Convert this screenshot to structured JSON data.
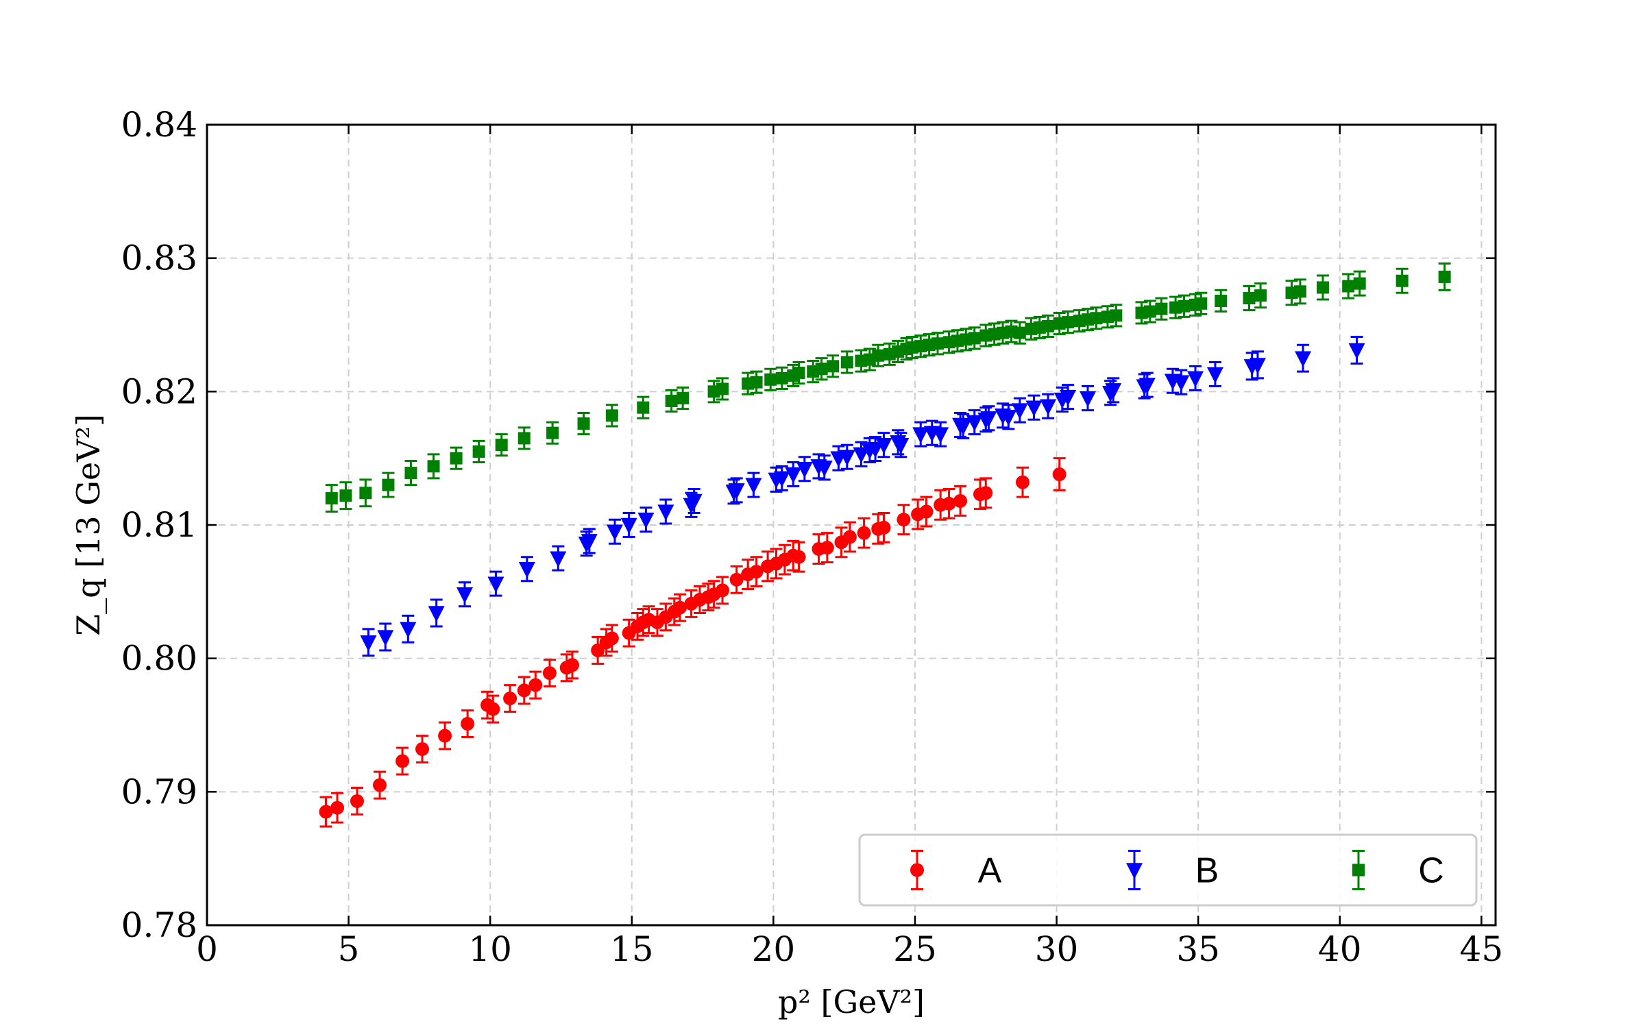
{
  "chart_data": {
    "type": "scatter",
    "title": "",
    "xlabel": "p² [GeV²]",
    "ylabel": "Z_q  [13 GeV²]",
    "xlim": [
      0,
      45.5
    ],
    "ylim": [
      0.78,
      0.84
    ],
    "xticks": [
      0,
      5,
      10,
      15,
      20,
      25,
      30,
      35,
      40,
      45
    ],
    "xtick_labels": [
      "0",
      "5",
      "10",
      "15",
      "20",
      "25",
      "30",
      "35",
      "40",
      "45"
    ],
    "yticks": [
      0.78,
      0.79,
      0.8,
      0.81,
      0.82,
      0.83,
      0.84
    ],
    "ytick_labels": [
      "0.78",
      "0.79",
      "0.80",
      "0.81",
      "0.82",
      "0.83",
      "0.84"
    ],
    "grid": true,
    "legend": {
      "placement": "lower-right",
      "columns": 3
    },
    "series": [
      {
        "name": "A",
        "color": "#ff0000",
        "marker": "circle",
        "x": [
          4.2,
          4.6,
          5.3,
          6.1,
          6.9,
          7.6,
          8.4,
          9.2,
          9.9,
          10.1,
          10.7,
          11.2,
          11.6,
          12.1,
          12.7,
          12.9,
          13.8,
          14.1,
          14.3,
          14.9,
          15.2,
          15.4,
          15.6,
          15.9,
          16.2,
          16.5,
          16.7,
          17.1,
          17.4,
          17.7,
          17.9,
          18.2,
          18.7,
          19.1,
          19.4,
          19.8,
          20.1,
          20.4,
          20.7,
          20.9,
          21.6,
          21.9,
          22.4,
          22.7,
          23.2,
          23.7,
          23.9,
          24.6,
          25.1,
          25.4,
          25.9,
          26.2,
          26.6,
          27.3,
          27.5,
          28.8,
          30.1
        ],
        "y": [
          0.7885,
          0.7888,
          0.7893,
          0.7905,
          0.7923,
          0.7932,
          0.7942,
          0.7951,
          0.7965,
          0.7962,
          0.797,
          0.7976,
          0.798,
          0.7989,
          0.7993,
          0.7995,
          0.8006,
          0.8012,
          0.8015,
          0.8019,
          0.8024,
          0.8027,
          0.8029,
          0.8027,
          0.8031,
          0.8035,
          0.8038,
          0.8041,
          0.8044,
          0.8046,
          0.8048,
          0.8051,
          0.8059,
          0.8063,
          0.8065,
          0.8069,
          0.8071,
          0.8074,
          0.8077,
          0.8076,
          0.8082,
          0.8083,
          0.8087,
          0.8091,
          0.8094,
          0.8097,
          0.8098,
          0.8104,
          0.8108,
          0.811,
          0.8115,
          0.8116,
          0.8118,
          0.8123,
          0.8124,
          0.8132,
          0.8138
        ],
        "err": [
          0.0011,
          0.0011,
          0.001,
          0.001,
          0.001,
          0.001,
          0.001,
          0.001,
          0.001,
          0.001,
          0.001,
          0.001,
          0.001,
          0.001,
          0.001,
          0.001,
          0.001,
          0.001,
          0.001,
          0.001,
          0.001,
          0.001,
          0.001,
          0.001,
          0.001,
          0.001,
          0.001,
          0.001,
          0.001,
          0.001,
          0.001,
          0.001,
          0.001,
          0.0011,
          0.0011,
          0.0011,
          0.0011,
          0.0011,
          0.0011,
          0.0011,
          0.0011,
          0.0011,
          0.0011,
          0.0011,
          0.0011,
          0.0011,
          0.0011,
          0.0011,
          0.0011,
          0.0011,
          0.0011,
          0.0011,
          0.0011,
          0.0011,
          0.0011,
          0.0011,
          0.0012
        ]
      },
      {
        "name": "B",
        "color": "#0000ff",
        "marker": "triangle-down",
        "x": [
          5.7,
          6.3,
          7.1,
          8.1,
          9.1,
          10.2,
          11.3,
          12.4,
          13.4,
          13.5,
          14.4,
          14.9,
          15.5,
          16.2,
          17.1,
          17.2,
          18.6,
          18.7,
          19.3,
          20.1,
          20.3,
          20.7,
          21.1,
          21.6,
          21.8,
          22.3,
          22.6,
          23.1,
          23.4,
          23.6,
          23.9,
          24.4,
          24.5,
          25.2,
          25.6,
          25.9,
          26.6,
          26.7,
          27.1,
          27.5,
          27.6,
          28.1,
          28.3,
          28.7,
          29.2,
          29.7,
          30.2,
          30.4,
          31.1,
          31.9,
          32.0,
          33.1,
          33.2,
          34.1,
          34.4,
          34.9,
          35.6,
          36.9,
          37.1,
          38.7,
          40.6
        ],
        "y": [
          0.8012,
          0.8016,
          0.8022,
          0.8034,
          0.8048,
          0.8056,
          0.8067,
          0.8075,
          0.8086,
          0.8088,
          0.8095,
          0.81,
          0.8104,
          0.811,
          0.8115,
          0.8118,
          0.8125,
          0.8126,
          0.813,
          0.8134,
          0.8135,
          0.8138,
          0.8142,
          0.8144,
          0.8143,
          0.815,
          0.8151,
          0.8153,
          0.8156,
          0.8157,
          0.816,
          0.8162,
          0.816,
          0.8168,
          0.8169,
          0.8168,
          0.8175,
          0.8174,
          0.8177,
          0.8179,
          0.818,
          0.8182,
          0.8181,
          0.8186,
          0.8188,
          0.8189,
          0.8194,
          0.8196,
          0.8195,
          0.8199,
          0.8201,
          0.8204,
          0.8205,
          0.8208,
          0.8207,
          0.821,
          0.8213,
          0.8219,
          0.822,
          0.8225,
          0.8231
        ],
        "err": [
          0.001,
          0.001,
          0.001,
          0.001,
          0.0009,
          0.0009,
          0.0009,
          0.0009,
          0.0009,
          0.0009,
          0.0009,
          0.0009,
          0.0009,
          0.0009,
          0.0009,
          0.0009,
          0.0009,
          0.0009,
          0.0009,
          0.0009,
          0.0009,
          0.0009,
          0.0009,
          0.0009,
          0.0009,
          0.0009,
          0.0009,
          0.0009,
          0.0009,
          0.0009,
          0.0009,
          0.0009,
          0.0009,
          0.0009,
          0.0009,
          0.0009,
          0.0009,
          0.0009,
          0.0009,
          0.0009,
          0.0009,
          0.0009,
          0.0009,
          0.0009,
          0.0009,
          0.0009,
          0.0009,
          0.0009,
          0.0009,
          0.0009,
          0.0009,
          0.0009,
          0.0009,
          0.0009,
          0.0009,
          0.0009,
          0.0009,
          0.001,
          0.001,
          0.001,
          0.001
        ]
      },
      {
        "name": "C",
        "color": "#008000",
        "marker": "square",
        "x": [
          4.4,
          4.9,
          5.6,
          6.4,
          7.2,
          8.0,
          8.8,
          9.6,
          10.4,
          11.2,
          12.2,
          13.3,
          14.3,
          15.4,
          16.4,
          16.8,
          17.9,
          18.2,
          19.1,
          19.4,
          19.9,
          20.3,
          20.7,
          20.9,
          21.4,
          21.7,
          22.1,
          22.6,
          23.1,
          23.4,
          23.7,
          24.1,
          24.4,
          24.7,
          24.9,
          25.2,
          25.5,
          25.8,
          26.2,
          26.5,
          26.8,
          27.1,
          27.5,
          27.8,
          28.1,
          28.4,
          28.7,
          29.1,
          29.4,
          29.7,
          30.1,
          30.4,
          30.8,
          31.1,
          31.4,
          31.8,
          32.1,
          33.0,
          33.3,
          33.7,
          34.2,
          34.5,
          34.9,
          35.1,
          35.8,
          36.8,
          37.2,
          38.3,
          38.6,
          39.4,
          40.3,
          40.7,
          42.2,
          43.7
        ],
        "y": [
          0.812,
          0.8122,
          0.8124,
          0.813,
          0.8139,
          0.8144,
          0.815,
          0.8155,
          0.816,
          0.8165,
          0.8169,
          0.8176,
          0.8182,
          0.8188,
          0.8193,
          0.8195,
          0.82,
          0.8202,
          0.8206,
          0.8207,
          0.8209,
          0.821,
          0.8212,
          0.8214,
          0.8215,
          0.8217,
          0.8219,
          0.8222,
          0.8223,
          0.8224,
          0.8227,
          0.8228,
          0.823,
          0.8232,
          0.8233,
          0.8234,
          0.8235,
          0.8236,
          0.8237,
          0.8238,
          0.8239,
          0.824,
          0.8242,
          0.8243,
          0.8244,
          0.8245,
          0.8244,
          0.8247,
          0.8248,
          0.8249,
          0.8251,
          0.8252,
          0.8253,
          0.8254,
          0.8255,
          0.8256,
          0.8257,
          0.8259,
          0.826,
          0.8262,
          0.8263,
          0.8264,
          0.8265,
          0.8266,
          0.8268,
          0.827,
          0.8272,
          0.8274,
          0.8275,
          0.8278,
          0.8279,
          0.8281,
          0.8283,
          0.8286
        ],
        "err": [
          0.001,
          0.001,
          0.001,
          0.0009,
          0.0009,
          0.0009,
          0.0008,
          0.0008,
          0.0008,
          0.0008,
          0.0008,
          0.0008,
          0.0008,
          0.0008,
          0.0008,
          0.0008,
          0.0008,
          0.0008,
          0.0008,
          0.0008,
          0.0008,
          0.0008,
          0.0008,
          0.0008,
          0.0008,
          0.0008,
          0.0008,
          0.0008,
          0.0008,
          0.0008,
          0.0008,
          0.0008,
          0.0008,
          0.0008,
          0.0008,
          0.0008,
          0.0008,
          0.0008,
          0.0008,
          0.0008,
          0.0008,
          0.0008,
          0.0008,
          0.0008,
          0.0008,
          0.0008,
          0.0008,
          0.0008,
          0.0008,
          0.0008,
          0.0008,
          0.0008,
          0.0008,
          0.0008,
          0.0008,
          0.0008,
          0.0008,
          0.0008,
          0.0008,
          0.0008,
          0.0008,
          0.0008,
          0.0008,
          0.0008,
          0.0008,
          0.0009,
          0.0009,
          0.0009,
          0.0009,
          0.0009,
          0.0009,
          0.0009,
          0.0009,
          0.001
        ]
      }
    ]
  }
}
